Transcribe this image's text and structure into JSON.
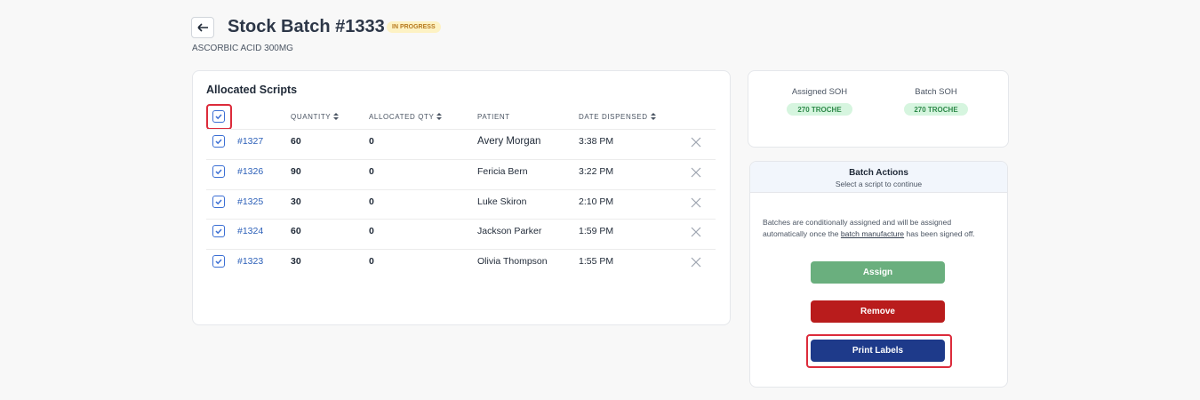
{
  "header": {
    "title": "Stock Batch #1333",
    "status": "IN PROGRESS",
    "subtitle": "ASCORBIC ACID 300MG"
  },
  "scripts": {
    "title": "Allocated Scripts",
    "columns": [
      "QUANTITY",
      "ALLOCATED QTY",
      "PATIENT",
      "DATE DISPENSED"
    ],
    "rows": [
      [
        "#1327",
        "60",
        "0",
        "Avery Morgan",
        "3:38 PM"
      ],
      [
        "#1326",
        "90",
        "0",
        "Fericia Bern",
        "3:22 PM"
      ],
      [
        "#1325",
        "30",
        "0",
        "Luke Skiron",
        "2:10 PM"
      ],
      [
        "#1324",
        "60",
        "0",
        "Jackson Parker",
        "1:59 PM"
      ],
      [
        "#1323",
        "30",
        "0",
        "Olivia Thompson",
        "1:55 PM"
      ]
    ]
  },
  "soh": {
    "assigned_label": "Assigned SOH",
    "assigned_value": "270 TROCHE",
    "batch_label": "Batch SOH",
    "batch_value": "270 TROCHE"
  },
  "actions": {
    "title": "Batch Actions",
    "subtitle": "Select a script to continue",
    "notice_before": "Batches are conditionally assigned and will be assigned automatically once the ",
    "notice_link": "batch manufacture",
    "notice_after": " has been signed off.",
    "buttons": [
      "Assign",
      "Remove",
      "Print Labels"
    ]
  }
}
